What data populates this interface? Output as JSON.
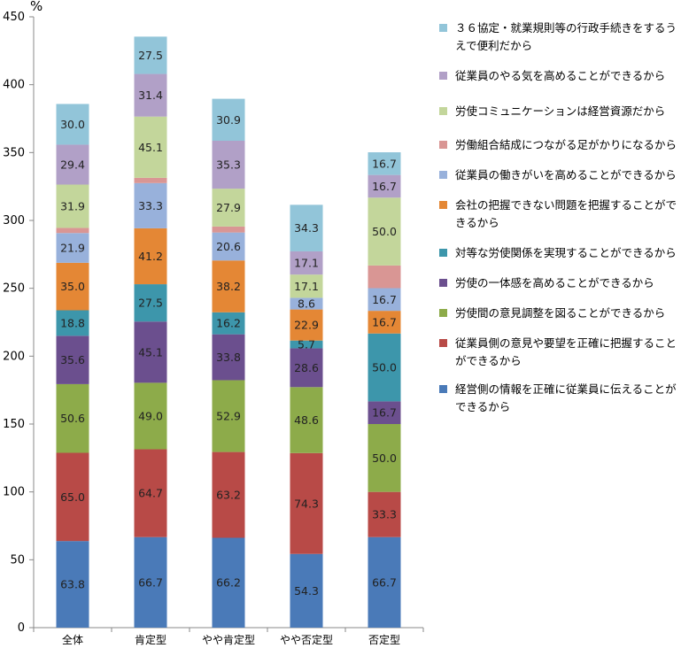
{
  "chart_data": {
    "type": "bar",
    "stacked": true,
    "unit_label": "%",
    "categories": [
      "全体",
      "肯定型",
      "やや肯定型",
      "やや否定型",
      "否定型"
    ],
    "ylim": [
      0,
      450
    ],
    "yticks": [
      0,
      50,
      100,
      150,
      200,
      250,
      300,
      350,
      400,
      450
    ],
    "grid": false,
    "legend_position": "right",
    "series": [
      {
        "name": "経営側の情報を正確に従業員に伝えることができるから",
        "color": "#4a7ab8",
        "values": [
          63.8,
          66.7,
          66.2,
          54.3,
          66.7
        ]
      },
      {
        "name": "従業員側の意見や要望を正確に把握することができるから",
        "color": "#b84a47",
        "values": [
          65.0,
          64.7,
          63.2,
          74.3,
          33.3
        ]
      },
      {
        "name": "労使間の意見調整を図ることができるから",
        "color": "#8dab4a",
        "values": [
          50.6,
          49.0,
          52.9,
          48.6,
          50.0
        ]
      },
      {
        "name": "労使の一体感を高めることができるから",
        "color": "#6b4f8e",
        "values": [
          35.6,
          45.1,
          33.8,
          28.6,
          16.7
        ]
      },
      {
        "name": "対等な労使関係を実現することができるから",
        "color": "#3d96ab",
        "values": [
          18.8,
          27.5,
          16.2,
          5.7,
          50.0
        ]
      },
      {
        "name": "会社の把握できない問題を把握することができるから",
        "color": "#e48735",
        "values": [
          35.0,
          41.2,
          38.2,
          22.9,
          16.7
        ]
      },
      {
        "name": "従業員の働きがいを高めることができるから",
        "color": "#98b1db",
        "values": [
          21.9,
          33.3,
          20.6,
          8.6,
          16.7
        ]
      },
      {
        "name": "労働組合結成につながる足がかりになるから",
        "color": "#d99694",
        "values": [
          3.8,
          3.9,
          4.4,
          0,
          16.7
        ]
      },
      {
        "name": "労使コミュニケーションは経営資源だから",
        "color": "#c3d69b",
        "values": [
          31.9,
          45.1,
          27.9,
          17.1,
          50.0
        ]
      },
      {
        "name": "従業員のやる気を高めることができるから",
        "color": "#b1a0c7",
        "values": [
          29.4,
          31.4,
          35.3,
          17.1,
          16.7
        ]
      },
      {
        "name": "３６協定・就業規則等の行政手続きをするうえで便利だから",
        "color": "#92c5d9",
        "values": [
          30.0,
          27.5,
          30.9,
          34.3,
          16.7
        ]
      }
    ],
    "data_labels": [
      [
        "63.8",
        "66.7",
        "66.2",
        "54.3",
        "66.7"
      ],
      [
        "65.0",
        "64.7",
        "63.2",
        "74.3",
        "33.3"
      ],
      [
        "50.6",
        "49.0",
        "52.9",
        "48.6",
        "50.0"
      ],
      [
        "35.6",
        "45.1",
        "33.8",
        "28.6",
        "16.7"
      ],
      [
        "18.8",
        "27.5",
        "16.2",
        "5.7",
        "50.0"
      ],
      [
        "35.0",
        "41.2",
        "38.2",
        "22.9",
        "16.7"
      ],
      [
        "21.9",
        "33.3",
        "20.6",
        "8.6",
        "16.7"
      ],
      [
        "",
        "",
        "",
        "",
        ""
      ],
      [
        "31.9",
        "45.1",
        "27.9",
        "17.1",
        "50.0"
      ],
      [
        "29.4",
        "31.4",
        "35.3",
        "17.1",
        "16.7"
      ],
      [
        "30.0",
        "27.5",
        "30.9",
        "34.3",
        "16.7"
      ]
    ],
    "legend": [
      "３６協定・就業規則等の行政手続きをするうえで便利だから",
      "従業員のやる気を高めることができるから",
      "労使コミュニケーションは経営資源だから",
      "労働組合結成につながる足がかりになるから",
      "従業員の働きがいを高めることができるから",
      "会社の把握できない問題を把握することができるから",
      "対等な労使関係を実現することができるから",
      "労使の一体感を高めることができるから",
      "労使間の意見調整を図ることができるから",
      "従業員側の意見や要望を正確に把握することができるから",
      "経営側の情報を正確に従業員に伝えることができるから"
    ]
  }
}
